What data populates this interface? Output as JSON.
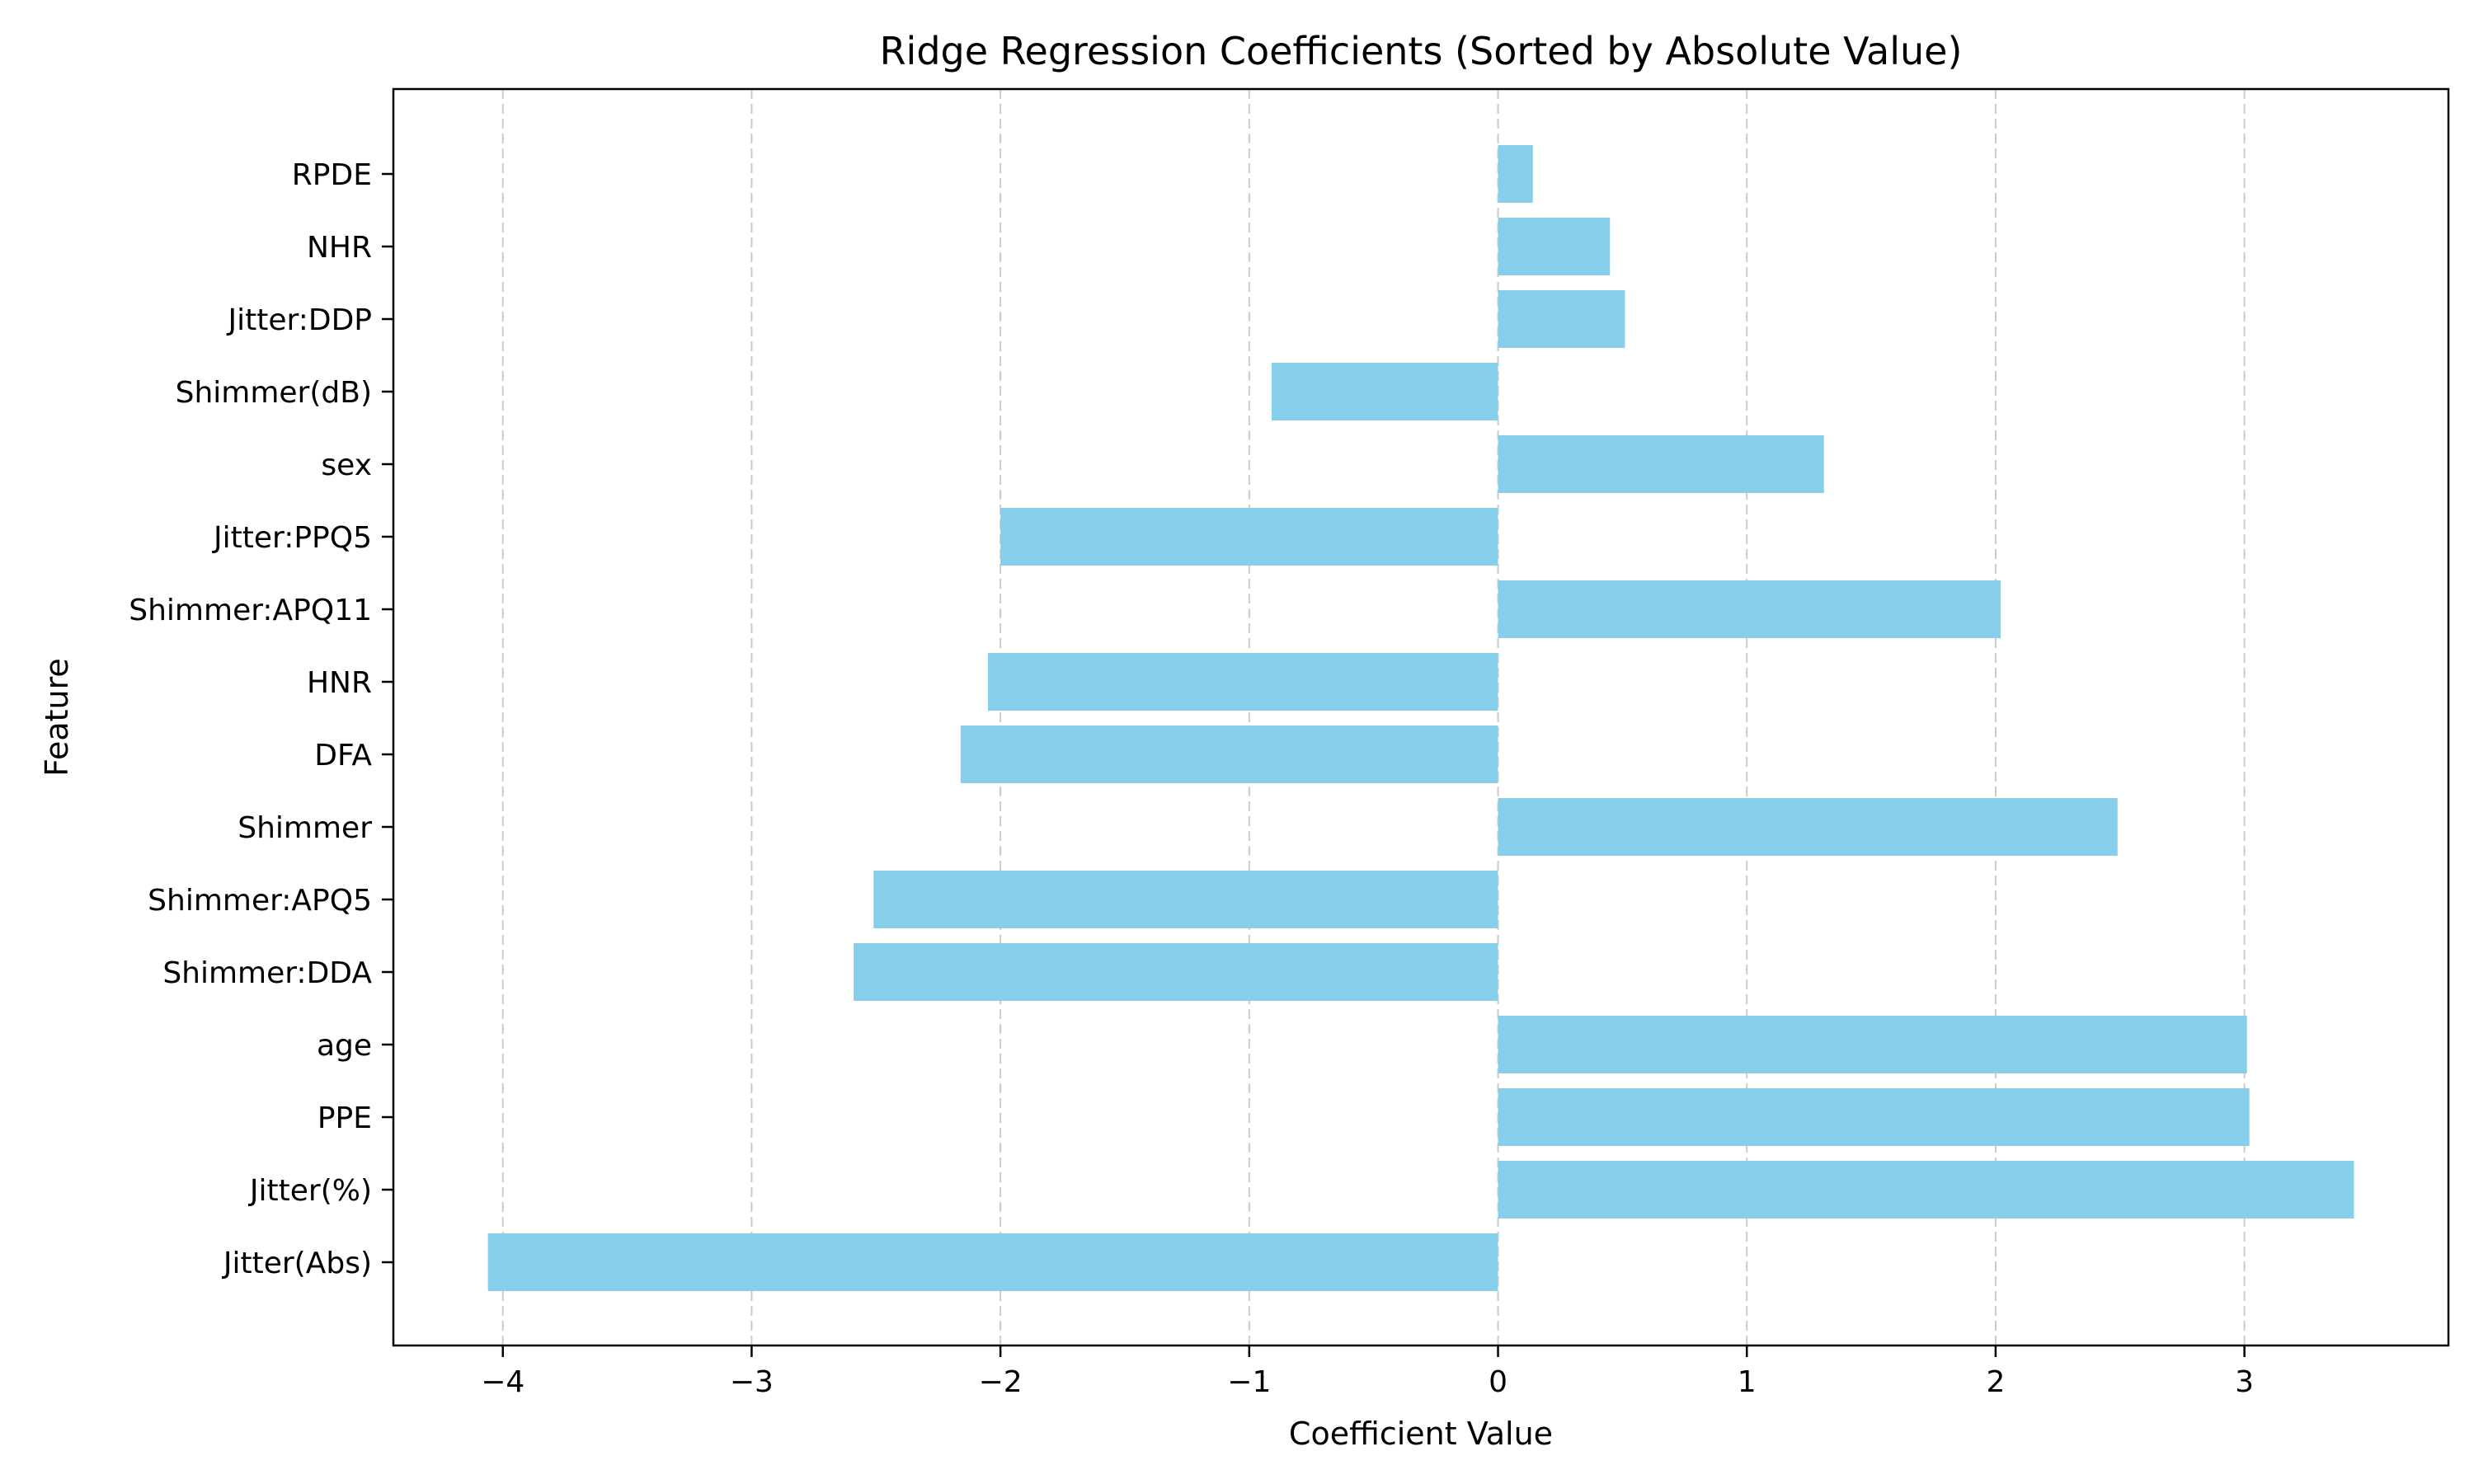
{
  "chart_data": {
    "type": "bar",
    "orientation": "horizontal",
    "title": "Ridge Regression Coefficients (Sorted by Absolute Value)",
    "xlabel": "Coefficient Value",
    "ylabel": "Feature",
    "categories": [
      "Jitter(Abs)",
      "Jitter(%)",
      "PPE",
      "age",
      "Shimmer:DDA",
      "Shimmer:APQ5",
      "Shimmer",
      "DFA",
      "HNR",
      "Shimmer:APQ11",
      "Jitter:PPQ5",
      "sex",
      "Shimmer(dB)",
      "Jitter:DDP",
      "NHR",
      "RPDE"
    ],
    "values": [
      -4.06,
      3.44,
      3.02,
      3.01,
      -2.59,
      -2.51,
      2.49,
      -2.16,
      -2.05,
      2.02,
      -2.0,
      1.31,
      -0.91,
      0.51,
      0.45,
      0.14
    ],
    "xlim": [
      -4.44,
      3.82
    ],
    "xticks": [
      -4,
      -3,
      -2,
      -1,
      0,
      1,
      2,
      3
    ],
    "xtick_labels": [
      "−4",
      "−3",
      "−2",
      "−1",
      "0",
      "1",
      "2",
      "3"
    ],
    "grid": {
      "x": true,
      "y": false,
      "style": "dashed"
    },
    "bar_color": "#87ceeb",
    "grid_color": "#cccccc",
    "legend": "none"
  }
}
